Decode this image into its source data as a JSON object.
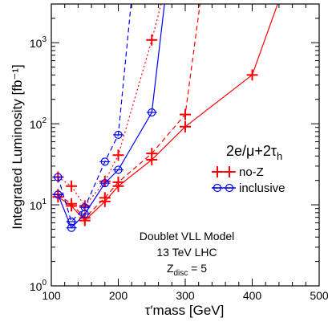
{
  "chart_data": {
    "type": "line",
    "xlabel": "τ′mass  [GeV]",
    "ylabel": "Integrated Luminosity [fb⁻¹]",
    "xlim": [
      100,
      500
    ],
    "ylim": [
      1,
      3000
    ],
    "yscale": "log",
    "x_ticks": [
      "100",
      "200",
      "300",
      "400",
      "500"
    ],
    "y_ticks": [
      {
        "base": "10",
        "exp": "0",
        "value": 1
      },
      {
        "base": "10",
        "exp": "1",
        "value": 10
      },
      {
        "base": "10",
        "exp": "2",
        "value": 100
      },
      {
        "base": "10",
        "exp": "3",
        "value": 1000
      }
    ],
    "legend": {
      "title": "2e/μ+2τ",
      "title_sub": "h",
      "position": "right",
      "entries": [
        {
          "label": "no-Z",
          "color": "#ff0000",
          "marker": "plus"
        },
        {
          "label": "inclusive",
          "color": "#0000ff",
          "marker": "circle"
        }
      ]
    },
    "annotation": {
      "line1": "Doublet VLL Model",
      "line2": "13 TeV LHC",
      "line3_main": "Z",
      "line3_sub": "disc",
      "line3_rest": " = 5"
    },
    "series": [
      {
        "color": "#ff0000",
        "marker": "plus",
        "dash": "solid",
        "x": [
          110,
          130,
          150,
          180,
          200,
          250,
          300,
          400,
          438
        ],
        "y": [
          12.5,
          9.7,
          6.4,
          11,
          17,
          36,
          92,
          400,
          3000
        ]
      },
      {
        "color": "#ff0000",
        "marker": "plus",
        "dash": "dashed",
        "x": [
          110,
          130,
          150,
          180,
          200,
          250,
          300,
          322
        ],
        "y": [
          13.4,
          10.3,
          6.9,
          12.2,
          19,
          43,
          130,
          3000
        ]
      },
      {
        "color": "#ff0000",
        "marker": "plus",
        "dash": "dotted",
        "x": [
          110,
          130,
          150,
          180,
          200,
          250,
          264
        ],
        "y": [
          22,
          17,
          9.7,
          19.5,
          41,
          1080,
          3000
        ]
      },
      {
        "color": "#0000ff",
        "marker": "circle",
        "dash": "solid",
        "x": [
          110,
          130,
          150,
          180,
          200,
          250,
          269
        ],
        "y": [
          13.4,
          5.2,
          7.7,
          18.5,
          27,
          138,
          3000
        ]
      },
      {
        "color": "#0000ff",
        "marker": "circle",
        "dash": "dashed",
        "x": [
          110,
          130,
          150,
          180,
          200,
          219
        ],
        "y": [
          22,
          6.2,
          9.3,
          34,
          73,
          3000
        ]
      }
    ]
  }
}
